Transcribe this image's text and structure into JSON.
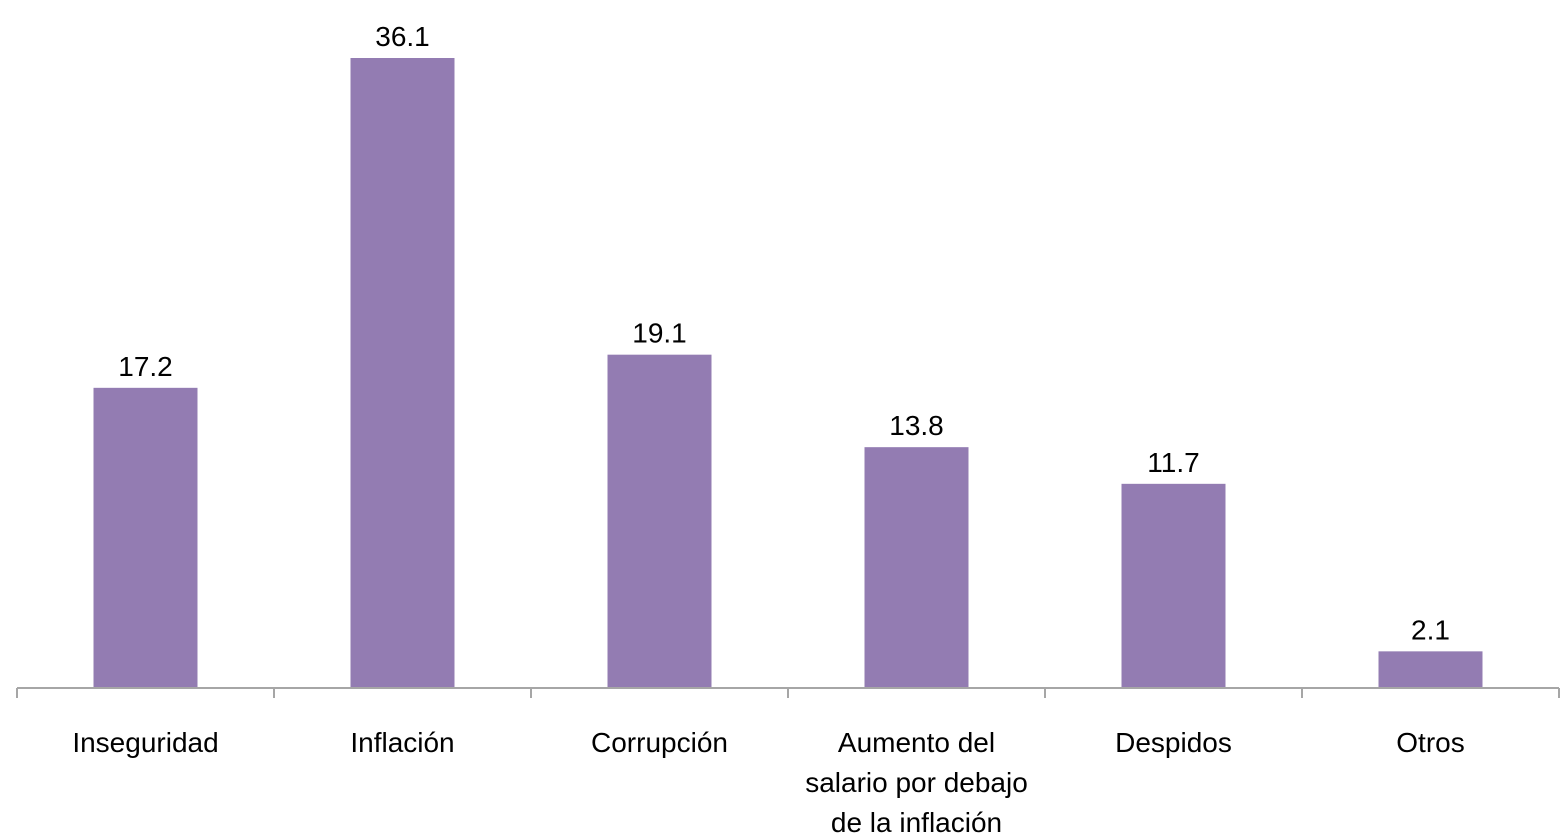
{
  "chart_data": {
    "type": "bar",
    "categories": [
      [
        "Inseguridad"
      ],
      [
        "Inflación"
      ],
      [
        "Corrupción"
      ],
      [
        "Aumento del",
        "salario por debajo",
        "de la inflación"
      ],
      [
        "Despidos"
      ],
      [
        "Otros"
      ]
    ],
    "values": [
      17.2,
      36.1,
      19.1,
      13.8,
      11.7,
      2.1
    ],
    "value_labels": [
      "17.2",
      "36.1",
      "19.1",
      "13.8",
      "11.7",
      "2.1"
    ],
    "ylim": [
      0,
      36.1
    ],
    "grid": false,
    "legend": "none",
    "colors": {
      "bar": "#937cb2",
      "axis": "#a6a6a6",
      "text": "#000000"
    }
  }
}
